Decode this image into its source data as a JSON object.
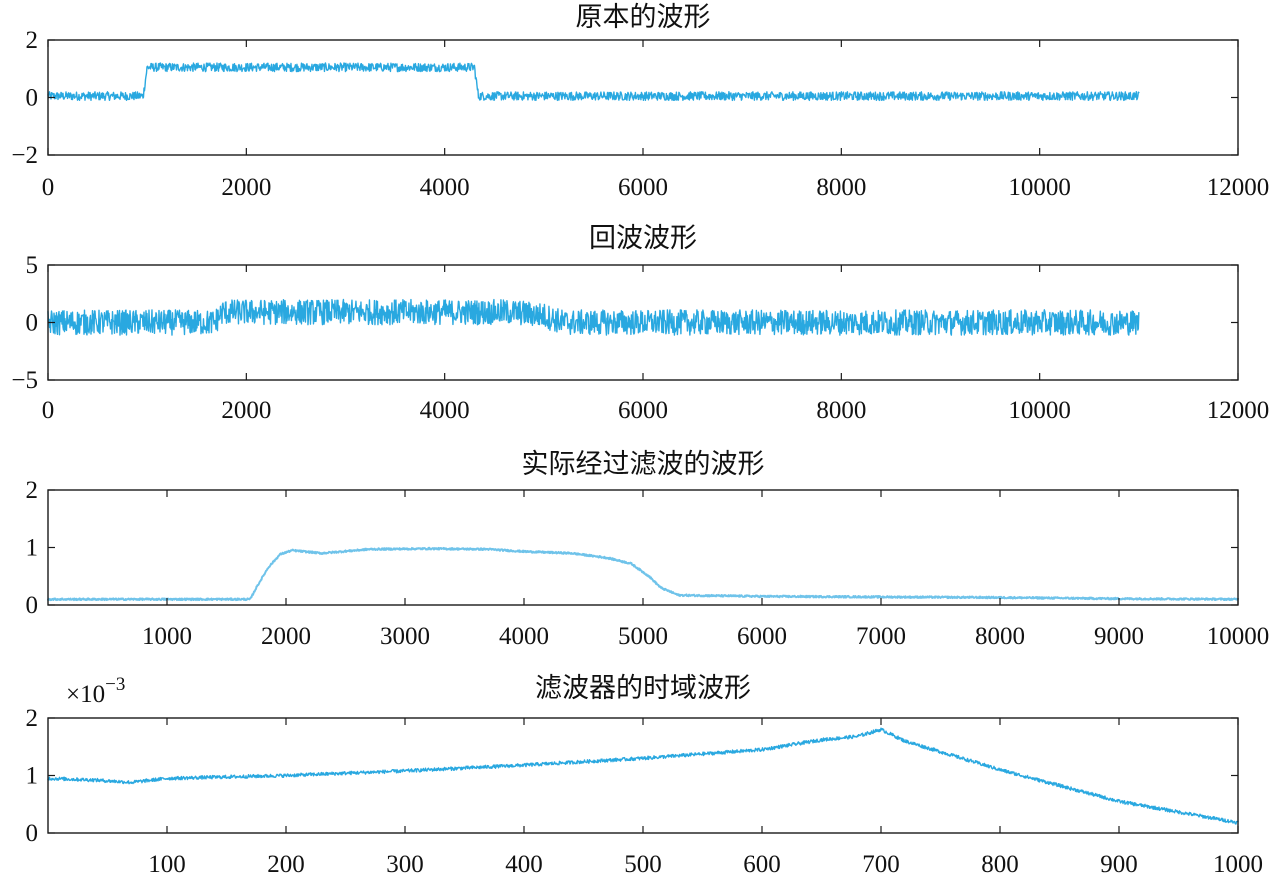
{
  "chart_data": [
    {
      "type": "line",
      "title": "原本的波形",
      "xlim": [
        0,
        12000
      ],
      "ylim": [
        -2,
        2
      ],
      "xticks": [
        0,
        2000,
        4000,
        6000,
        8000,
        10000,
        12000
      ],
      "yticks": [
        -2,
        0,
        2
      ],
      "xtick_labels": [
        "0",
        "2000",
        "4000",
        "6000",
        "8000",
        "10000",
        "12000"
      ],
      "ytick_labels": [
        "−2",
        "0",
        "2"
      ],
      "line_color": "#29a8e0",
      "series": [
        {
          "x": [
            0,
            960,
            1000,
            4300,
            4340,
            11000
          ],
          "y": [
            0.05,
            0.05,
            1.05,
            1.05,
            0.05,
            0.05
          ]
        }
      ],
      "noise_amplitude": 0.15
    },
    {
      "type": "line",
      "title": "回波波形",
      "xlim": [
        0,
        12000
      ],
      "ylim": [
        -5,
        5
      ],
      "xticks": [
        0,
        2000,
        4000,
        6000,
        8000,
        10000,
        12000
      ],
      "yticks": [
        -5,
        0,
        5
      ],
      "xtick_labels": [
        "0",
        "2000",
        "4000",
        "6000",
        "8000",
        "10000",
        "12000"
      ],
      "ytick_labels": [
        "−5",
        "0",
        "5"
      ],
      "line_color": "#29a8e0",
      "series": [
        {
          "x": [
            0,
            1680,
            1760,
            4700,
            5000,
            5200,
            11000
          ],
          "y": [
            0,
            0,
            0.9,
            0.9,
            0.6,
            0,
            0
          ]
        }
      ],
      "noise_amplitude": 1.1
    },
    {
      "type": "line",
      "title": "实际经过滤波的波形",
      "xlim": [
        0,
        10000
      ],
      "ylim": [
        0,
        2
      ],
      "xticks": [
        1000,
        2000,
        3000,
        4000,
        5000,
        6000,
        7000,
        8000,
        9000,
        10000
      ],
      "yticks": [
        0,
        1,
        2
      ],
      "xtick_labels": [
        "1000",
        "2000",
        "3000",
        "4000",
        "5000",
        "6000",
        "7000",
        "8000",
        "9000",
        "10000"
      ],
      "ytick_labels": [
        "0",
        "1",
        "2"
      ],
      "line_color": "#6fc3ea",
      "series": [
        {
          "x": [
            0,
            1700,
            1750,
            1850,
            1950,
            2050,
            2300,
            2700,
            3200,
            3700,
            4000,
            4400,
            4700,
            4900,
            5050,
            5150,
            5300,
            6000,
            7000,
            8000,
            9000,
            10000
          ],
          "y": [
            0.1,
            0.1,
            0.3,
            0.65,
            0.88,
            0.95,
            0.9,
            0.97,
            0.98,
            0.97,
            0.93,
            0.9,
            0.82,
            0.72,
            0.5,
            0.3,
            0.17,
            0.15,
            0.14,
            0.13,
            0.11,
            0.1
          ]
        }
      ],
      "noise_amplitude": 0.015
    },
    {
      "type": "line",
      "title": "滤波器的时域波形",
      "exponent_label": "×10",
      "exponent_power": "−3",
      "xlim": [
        0,
        1000
      ],
      "ylim": [
        0,
        0.002
      ],
      "xticks": [
        100,
        200,
        300,
        400,
        500,
        600,
        700,
        800,
        900,
        1000
      ],
      "yticks": [
        0,
        0.001,
        0.002
      ],
      "xtick_labels": [
        "100",
        "200",
        "300",
        "400",
        "500",
        "600",
        "700",
        "800",
        "900",
        "1000"
      ],
      "ytick_labels": [
        "0",
        "1",
        "2"
      ],
      "line_color": "#29a8e0",
      "series": [
        {
          "x": [
            0,
            40,
            70,
            100,
            200,
            300,
            400,
            500,
            600,
            650,
            680,
            700,
            720,
            800,
            900,
            1000
          ],
          "y": [
            0.00095,
            0.00092,
            0.00088,
            0.00095,
            0.001,
            0.00108,
            0.00118,
            0.0013,
            0.00145,
            0.00162,
            0.00168,
            0.0018,
            0.0016,
            0.0011,
            0.00055,
            0.00018
          ]
        }
      ],
      "noise_amplitude": 3e-05
    }
  ]
}
